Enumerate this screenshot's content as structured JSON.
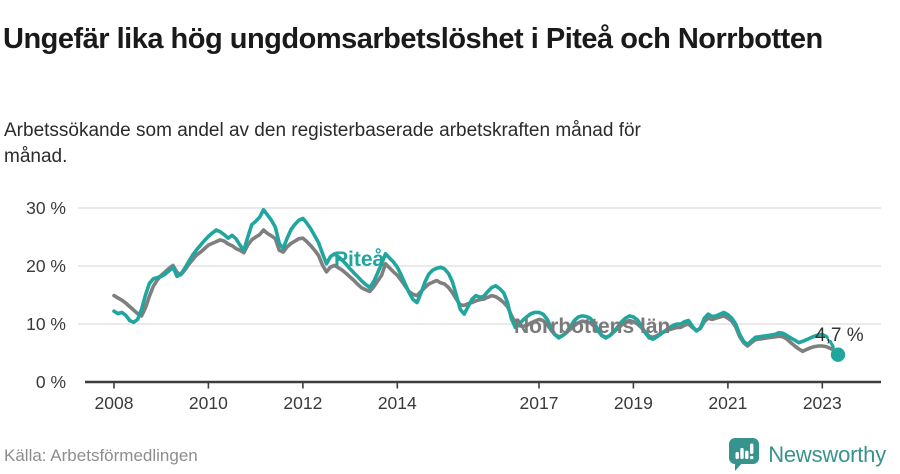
{
  "header": {
    "title": "Ungefär lika hög ungdomsarbetslöshet i Piteå och Norrbotten",
    "subtitle": "Arbetssökande som andel av den registerbaserade arbetskraften månad för månad."
  },
  "chart_data": {
    "type": "line",
    "title": "Ungefär lika hög ungdomsarbetslöshet i Piteå och Norrbotten",
    "unit": "percent of registered labour force",
    "x_start": "2008-01",
    "x_frequency": "monthly",
    "grid": "horizontal",
    "legend_position": "inline-labels",
    "ylim": [
      0,
      32
    ],
    "y_ticks": [
      {
        "label": "0 %",
        "value": 0
      },
      {
        "label": "10 %",
        "value": 10
      },
      {
        "label": "20 %",
        "value": 20
      },
      {
        "label": "30 %",
        "value": 30
      }
    ],
    "x_ticks": [
      {
        "label": "2008",
        "year": 2008
      },
      {
        "label": "2010",
        "year": 2010
      },
      {
        "label": "2012",
        "year": 2012
      },
      {
        "label": "2014",
        "year": 2014
      },
      {
        "label": "2017",
        "year": 2017
      },
      {
        "label": "2019",
        "year": 2019
      },
      {
        "label": "2021",
        "year": 2021
      },
      {
        "label": "2023",
        "year": 2023
      }
    ],
    "series": [
      {
        "name": "Norrbottens län",
        "color": "#7f7f7f",
        "values": [
          14.9,
          14.5,
          14.1,
          13.6,
          13.0,
          12.4,
          11.8,
          11.4,
          12.8,
          14.8,
          16.5,
          17.6,
          18.4,
          19.0,
          19.6,
          20.1,
          18.9,
          18.5,
          19.3,
          20.3,
          21.1,
          21.9,
          22.4,
          23.0,
          23.6,
          23.9,
          24.2,
          24.5,
          24.3,
          23.8,
          23.5,
          23.0,
          22.7,
          22.3,
          23.6,
          24.5,
          25.0,
          25.4,
          26.2,
          25.6,
          25.2,
          24.7,
          22.7,
          22.4,
          23.3,
          23.9,
          24.3,
          24.7,
          24.8,
          24.2,
          23.5,
          22.7,
          21.8,
          20.1,
          19.0,
          19.8,
          20.1,
          19.7,
          19.3,
          18.7,
          18.1,
          17.5,
          16.8,
          16.2,
          15.9,
          15.6,
          16.4,
          17.4,
          18.4,
          20.4,
          19.7,
          19.0,
          18.4,
          17.5,
          16.5,
          15.6,
          15.1,
          14.9,
          15.6,
          16.3,
          16.9,
          17.2,
          17.5,
          17.1,
          16.9,
          16.3,
          15.4,
          14.3,
          13.3,
          13.2,
          13.5,
          13.7,
          14.0,
          14.2,
          14.3,
          14.6,
          14.9,
          14.7,
          14.3,
          13.7,
          13.0,
          11.5,
          10.2,
          9.7,
          9.6,
          9.8,
          10.2,
          10.5,
          10.8,
          10.6,
          10.0,
          9.0,
          8.2,
          7.8,
          8.0,
          8.5,
          9.1,
          9.7,
          10.2,
          10.5,
          10.4,
          10.2,
          9.6,
          8.8,
          8.0,
          7.7,
          8.0,
          8.6,
          9.2,
          9.8,
          10.3,
          10.6,
          10.4,
          10.0,
          9.4,
          8.6,
          7.9,
          7.7,
          8.0,
          8.4,
          8.7,
          9.0,
          9.2,
          9.4,
          9.4,
          9.8,
          10.0,
          9.4,
          8.9,
          9.2,
          10.4,
          11.0,
          10.8,
          11.0,
          11.2,
          11.4,
          11.0,
          10.5,
          9.5,
          7.8,
          6.8,
          6.2,
          6.8,
          7.3,
          7.4,
          7.5,
          7.6,
          7.7,
          7.8,
          7.9,
          7.8,
          7.4,
          6.8,
          6.2,
          5.7,
          5.3,
          5.6,
          5.9,
          6.1,
          6.2,
          6.2,
          6.1,
          5.8,
          5.5,
          5.2
        ]
      },
      {
        "name": "Piteå",
        "color": "#20a69e",
        "dashed_from_index": 180,
        "end_marker": true,
        "values": [
          12.2,
          11.8,
          12.0,
          11.5,
          10.6,
          10.3,
          10.8,
          12.5,
          15.0,
          17.0,
          17.8,
          18.0,
          18.2,
          18.6,
          19.2,
          19.8,
          18.2,
          18.6,
          19.6,
          20.8,
          21.9,
          22.8,
          23.6,
          24.4,
          25.1,
          25.7,
          26.2,
          25.9,
          25.4,
          24.8,
          25.3,
          24.7,
          23.6,
          22.7,
          25.0,
          27.1,
          27.7,
          28.4,
          29.7,
          28.8,
          27.9,
          26.7,
          23.9,
          23.0,
          24.8,
          26.3,
          27.2,
          27.9,
          28.2,
          27.4,
          26.4,
          25.2,
          24.0,
          22.1,
          20.4,
          21.6,
          22.1,
          21.6,
          21.0,
          20.3,
          19.5,
          18.8,
          18.1,
          17.4,
          16.8,
          16.3,
          17.3,
          18.8,
          20.4,
          22.1,
          21.4,
          20.7,
          19.8,
          18.4,
          16.9,
          15.4,
          14.2,
          13.7,
          15.3,
          17.2,
          18.6,
          19.3,
          19.6,
          19.8,
          19.5,
          18.7,
          17.3,
          15.0,
          12.5,
          11.7,
          13.0,
          14.3,
          14.9,
          14.6,
          14.8,
          15.6,
          16.3,
          16.6,
          16.1,
          15.4,
          13.7,
          10.9,
          9.4,
          10.0,
          10.7,
          11.3,
          11.8,
          12.0,
          12.0,
          11.7,
          10.9,
          9.5,
          8.2,
          7.6,
          8.0,
          8.6,
          9.6,
          10.6,
          11.2,
          11.4,
          11.3,
          11.0,
          10.2,
          9.0,
          8.0,
          7.6,
          8.0,
          8.7,
          9.5,
          10.4,
          11.0,
          11.4,
          11.2,
          10.7,
          9.7,
          8.5,
          7.6,
          7.4,
          7.8,
          8.3,
          8.8,
          9.3,
          9.7,
          10.0,
          10.0,
          10.4,
          10.6,
          9.6,
          8.8,
          9.3,
          11.0,
          11.7,
          11.3,
          11.4,
          11.7,
          12.0,
          11.6,
          11.0,
          10.0,
          8.2,
          7.0,
          6.5,
          7.1,
          7.7,
          7.8,
          7.9,
          8.0,
          8.1,
          8.2,
          8.5,
          8.4,
          8.0,
          7.6,
          7.2,
          6.8,
          7.0,
          7.3,
          7.6,
          7.9,
          8.1,
          8.2,
          7.9,
          7.0,
          5.8,
          4.7
        ]
      }
    ],
    "annotations": {
      "pitea_label": "Piteå",
      "norrbotten_label": "Norrbottens län",
      "end_value_label": "4,7 %"
    }
  },
  "footer": {
    "source": "Källa: Arbetsförmedlingen",
    "logo_text": "Newsworthy"
  },
  "colors": {
    "pitea_teal": "#20a69e",
    "norrbotten_gray": "#7f7f7f",
    "logo_teal": "#37938e",
    "axis_dark": "#3d3d3d",
    "gridline": "#e3e3e3",
    "title_text": "#1a1a1a",
    "source_text": "#8d8d8d"
  }
}
